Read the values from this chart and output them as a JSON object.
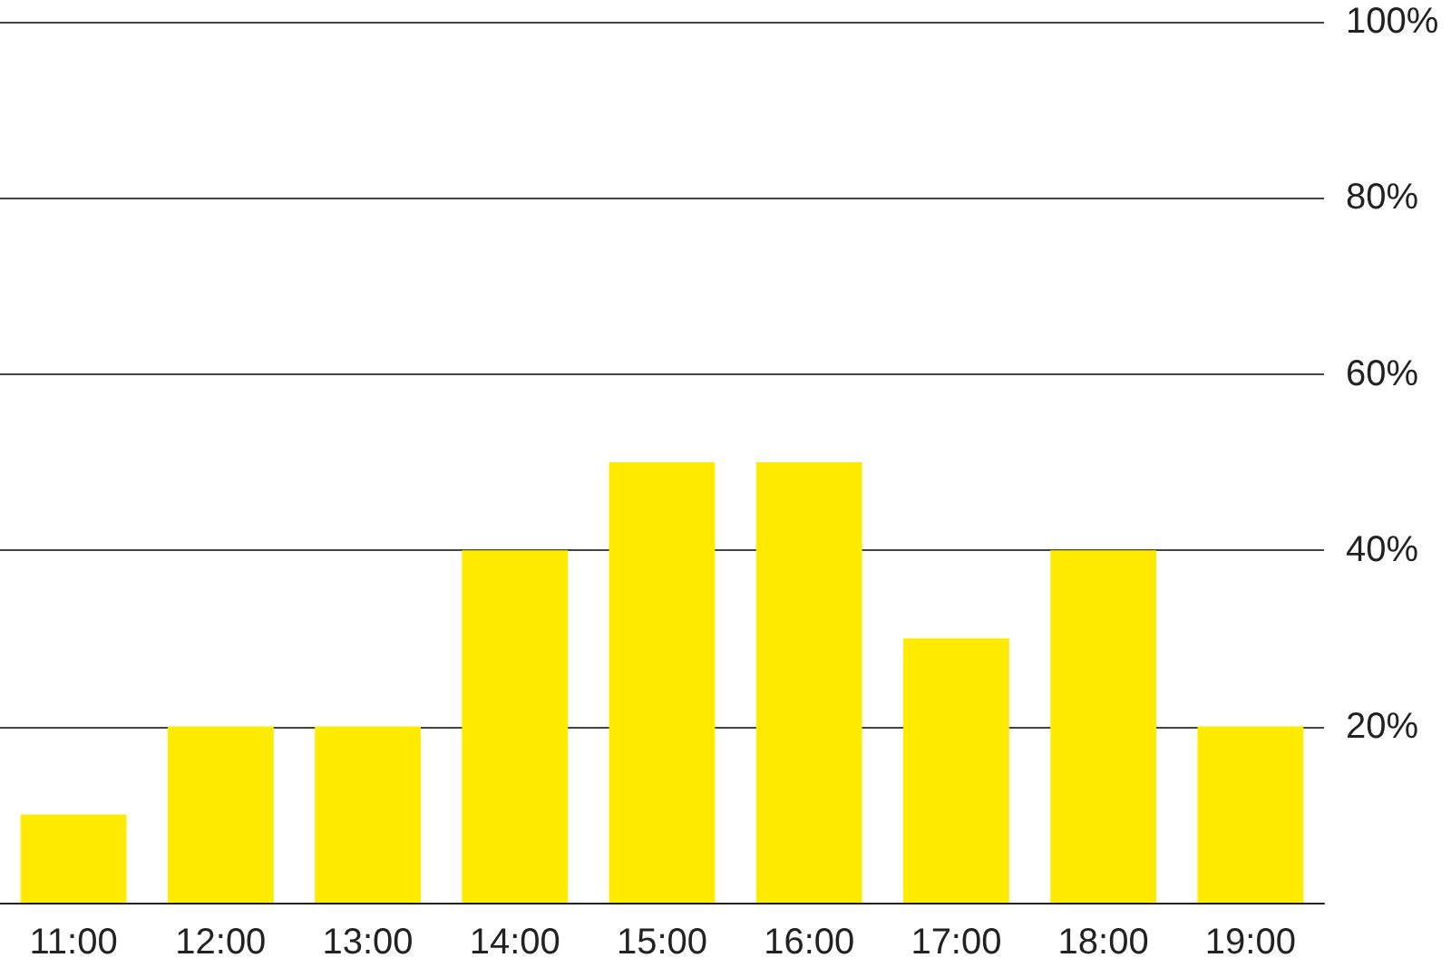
{
  "chart_data": {
    "type": "bar",
    "categories": [
      "11:00",
      "12:00",
      "13:00",
      "14:00",
      "15:00",
      "16:00",
      "17:00",
      "18:00",
      "19:00"
    ],
    "values": [
      10,
      20,
      20,
      40,
      50,
      50,
      30,
      40,
      20
    ],
    "color": "#ffeb00",
    "ylim": [
      0,
      100
    ],
    "yticks": [
      {
        "value": 0,
        "label": null
      },
      {
        "value": 20,
        "label": "20%"
      },
      {
        "value": 40,
        "label": "40%"
      },
      {
        "value": 60,
        "label": "60%"
      },
      {
        "value": 80,
        "label": "80%"
      },
      {
        "value": 100,
        "label": "100%"
      }
    ],
    "grid": "y"
  }
}
